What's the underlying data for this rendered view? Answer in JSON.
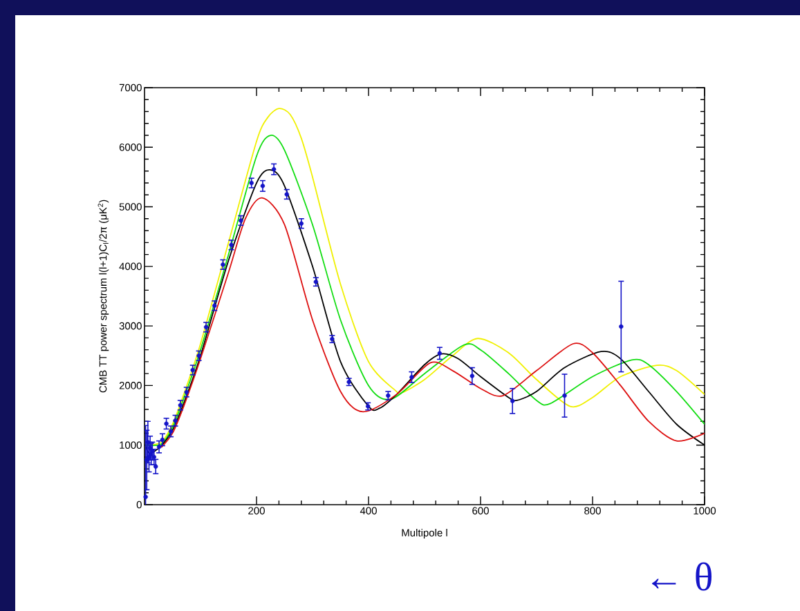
{
  "chart_data": {
    "type": "line",
    "xlabel": "Multipole l",
    "ylabel": "CMB TT power spectrum  l(l+1)C$_{l}$/2π (μK$^{2}$)",
    "xlim": [
      0,
      1000
    ],
    "ylim": [
      0,
      7000
    ],
    "xticks": [
      200,
      400,
      600,
      800,
      1000
    ],
    "yticks": [
      0,
      1000,
      2000,
      3000,
      4000,
      5000,
      6000,
      7000
    ],
    "annotations": [
      "← θ"
    ],
    "series": [
      {
        "color": "#f0f000",
        "x": [
          2,
          10,
          30,
          50,
          70,
          100,
          150,
          200,
          220,
          240,
          260,
          280,
          300,
          350,
          400,
          450,
          460,
          500,
          550,
          595,
          650,
          700,
          760,
          800,
          850,
          915,
          950,
          1000
        ],
        "values": [
          1000,
          null,
          1050,
          1350,
          1850,
          2700,
          4400,
          6100,
          6500,
          6650,
          6550,
          6150,
          5500,
          3700,
          2400,
          1900,
          1880,
          2100,
          2500,
          2790,
          2550,
          2100,
          1650,
          1800,
          2150,
          2340,
          2250,
          1850
        ]
      },
      {
        "color": "#10dd10",
        "x": [
          2,
          10,
          30,
          50,
          70,
          100,
          150,
          200,
          225,
          250,
          300,
          350,
          400,
          440,
          500,
          570,
          600,
          650,
          700,
          725,
          800,
          870,
          900,
          950,
          1000
        ],
        "values": [
          1000,
          null,
          1020,
          1300,
          1780,
          2600,
          4200,
          5850,
          6200,
          5950,
          4700,
          3100,
          2000,
          1770,
          2200,
          2680,
          2600,
          2200,
          1750,
          1700,
          2150,
          2430,
          2350,
          1900,
          1350
        ]
      },
      {
        "color": "#000000",
        "x": [
          2,
          10,
          30,
          50,
          70,
          100,
          150,
          200,
          225,
          250,
          300,
          350,
          400,
          420,
          450,
          500,
          530,
          560,
          600,
          650,
          665,
          700,
          750,
          815,
          850,
          900,
          950,
          1000
        ],
        "values": [
          980,
          860,
          990,
          1250,
          1700,
          2500,
          4100,
          5400,
          5620,
          5350,
          4000,
          2400,
          1650,
          1620,
          1850,
          2350,
          2530,
          2450,
          2150,
          1800,
          1750,
          1900,
          2300,
          2570,
          2450,
          1900,
          1350,
          1000
        ]
      },
      {
        "color": "#dd1010",
        "x": [
          30,
          50,
          70,
          100,
          150,
          180,
          210,
          250,
          300,
          350,
          390,
          450,
          510,
          550,
          600,
          640,
          700,
          765,
          800,
          850,
          900,
          950,
          1000
        ],
        "values": [
          960,
          1200,
          1650,
          2450,
          3900,
          4800,
          5150,
          4700,
          3100,
          1900,
          1560,
          1850,
          2380,
          2250,
          1950,
          1830,
          2250,
          2700,
          2550,
          2000,
          1400,
          1070,
          1200
        ]
      },
      {
        "type": "scatter",
        "color": "#1414c8",
        "marker": "circle",
        "x": [
          2,
          4,
          6,
          8,
          10,
          12,
          14,
          17,
          20,
          26,
          32,
          39,
          47,
          55,
          64,
          75,
          86,
          97,
          110,
          125,
          140,
          155,
          172,
          191,
          211,
          231,
          254,
          280,
          306,
          335,
          365,
          399,
          435,
          477,
          527,
          585,
          657,
          750,
          851
        ],
        "values": [
          130,
          750,
          1050,
          800,
          950,
          850,
          900,
          800,
          640,
          970,
          1090,
          1360,
          1230,
          1410,
          1670,
          1890,
          2260,
          2500,
          2980,
          3340,
          4030,
          4360,
          4770,
          5400,
          5350,
          5630,
          5210,
          4720,
          3740,
          2780,
          2060,
          1650,
          1830,
          2140,
          2540,
          2160,
          1740,
          1830,
          2990
        ],
        "errors": [
          1200,
          500,
          350,
          250,
          200,
          180,
          150,
          130,
          120,
          100,
          100,
          90,
          90,
          90,
          80,
          80,
          80,
          80,
          80,
          80,
          80,
          80,
          80,
          80,
          90,
          90,
          80,
          80,
          70,
          60,
          60,
          60,
          70,
          90,
          100,
          140,
          210,
          360,
          760
        ]
      }
    ]
  }
}
